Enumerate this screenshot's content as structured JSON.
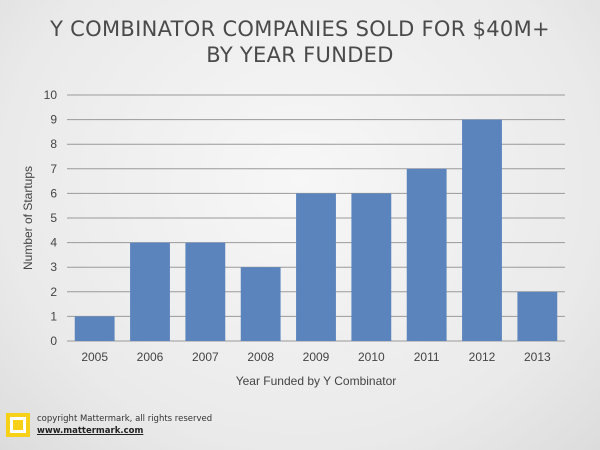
{
  "title": {
    "line1": "Y COMBINATOR COMPANIES SOLD FOR $40M+",
    "line2": "BY YEAR FUNDED"
  },
  "footer": {
    "copyright": "copyright Mattermark, all rights reserved",
    "url": "www.mattermark.com",
    "logo_color": "#f7d117"
  },
  "chart_data": {
    "type": "bar",
    "categories": [
      "2005",
      "2006",
      "2007",
      "2008",
      "2009",
      "2010",
      "2011",
      "2012",
      "2013"
    ],
    "values": [
      1,
      4,
      4,
      3,
      6,
      6,
      7,
      9,
      2
    ],
    "xlabel": "Year Funded by Y Combinator",
    "ylabel": "Number of Startups",
    "ylim": [
      0,
      10
    ],
    "yticks": [
      "0",
      "1",
      "2",
      "3",
      "4",
      "5",
      "6",
      "7",
      "8",
      "9",
      "10"
    ],
    "grid": true,
    "bar_color": "#5b84bd",
    "gridline_color": "#9a9a9a"
  }
}
